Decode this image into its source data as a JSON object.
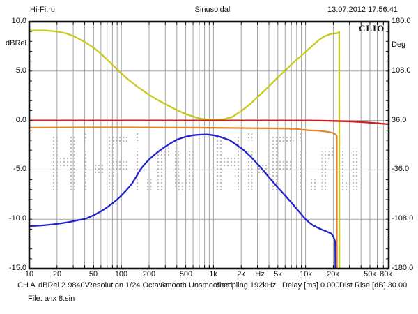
{
  "header": {
    "site": "Hi-Fi.ru",
    "title": "Sinusoidal",
    "datetime": "13.07.2012 17.56.41"
  },
  "brand": "CLIO",
  "watermark": "Hi-Fi.ru",
  "axes": {
    "left": {
      "unit": "dBRel",
      "ticks": [
        "10.0",
        "5.0",
        "0.0",
        "-5.0",
        "-10.0",
        "-15.0"
      ]
    },
    "right": {
      "unit": "Deg",
      "ticks": [
        "180.0",
        "108.0",
        "36.0",
        "-36.0",
        "-108.0",
        "-180.0"
      ]
    },
    "bottom": {
      "unit": "Hz",
      "ticks": [
        "10",
        "20",
        "50",
        "100",
        "200",
        "500",
        "1k",
        "2k",
        "5k",
        "10k",
        "20k",
        "50k",
        "80k"
      ]
    }
  },
  "status": {
    "channel": "CH A",
    "level": "dBRel 2.9840V",
    "resolution": "Resolution 1/24 Octave",
    "smoothing": "Smooth Unsmoothed",
    "sampling": "Sampling 192kHz",
    "delay": "Delay [ms] 0.000",
    "dist_rise": "Dist Rise [dB] 30.00",
    "file": "File: ачх 8.sin"
  },
  "chart_data": {
    "type": "line",
    "title": "Sinusoidal",
    "xlabel": "Hz",
    "ylabel_left": "dBRel",
    "ylabel_right": "Deg",
    "x_scale": "log",
    "xlim": [
      10,
      80000
    ],
    "ylim_left": [
      -15,
      10
    ],
    "ylim_right": [
      -180,
      180
    ],
    "grid": true,
    "grid_color": "#a6a6a6",
    "watermark_color": "#b4b4b4",
    "border_color": "#101010",
    "x_gridlines": [
      20,
      30,
      40,
      50,
      60,
      70,
      80,
      90,
      100,
      200,
      300,
      400,
      500,
      600,
      700,
      800,
      900,
      1000,
      2000,
      3000,
      4000,
      5000,
      6000,
      7000,
      8000,
      9000,
      10000,
      20000,
      30000,
      40000,
      50000,
      60000,
      70000,
      80000
    ],
    "y_gridlines": [
      5,
      0,
      -5,
      -10
    ],
    "series": [
      {
        "name": "yellow",
        "color": "#c9c91e",
        "points": [
          [
            10,
            9.1
          ],
          [
            15,
            9.1
          ],
          [
            20,
            9.0
          ],
          [
            25,
            8.82
          ],
          [
            30,
            8.55
          ],
          [
            40,
            7.95
          ],
          [
            50,
            7.35
          ],
          [
            60,
            6.75
          ],
          [
            70,
            6.15
          ],
          [
            80,
            5.65
          ],
          [
            90,
            5.15
          ],
          [
            100,
            4.75
          ],
          [
            120,
            4.1
          ],
          [
            150,
            3.4
          ],
          [
            200,
            2.6
          ],
          [
            250,
            2.05
          ],
          [
            300,
            1.65
          ],
          [
            400,
            1.05
          ],
          [
            500,
            0.65
          ],
          [
            600,
            0.4
          ],
          [
            700,
            0.22
          ],
          [
            850,
            0.1
          ],
          [
            1000,
            0.07
          ],
          [
            1300,
            0.12
          ],
          [
            1600,
            0.35
          ],
          [
            2000,
            0.95
          ],
          [
            2500,
            1.65
          ],
          [
            3000,
            2.35
          ],
          [
            4000,
            3.45
          ],
          [
            5000,
            4.35
          ],
          [
            6000,
            5.05
          ],
          [
            7000,
            5.65
          ],
          [
            8000,
            6.15
          ],
          [
            9000,
            6.55
          ],
          [
            10000,
            6.95
          ],
          [
            12000,
            7.6
          ],
          [
            14000,
            8.15
          ],
          [
            16000,
            8.5
          ],
          [
            18000,
            8.7
          ],
          [
            20000,
            8.8
          ],
          [
            22000,
            8.82
          ],
          [
            23200,
            8.95
          ],
          [
            23300,
            -15.5
          ]
        ]
      },
      {
        "name": "red",
        "color": "#d02020",
        "points": [
          [
            10,
            0
          ],
          [
            1000,
            0
          ],
          [
            10000,
            0
          ],
          [
            15000,
            -0.02
          ],
          [
            20000,
            -0.05
          ],
          [
            30000,
            -0.1
          ],
          [
            40000,
            -0.16
          ],
          [
            55000,
            -0.25
          ],
          [
            70000,
            -0.33
          ],
          [
            80000,
            -0.38
          ]
        ]
      },
      {
        "name": "orange",
        "color": "#e8862a",
        "points": [
          [
            10,
            -0.73
          ],
          [
            50,
            -0.7
          ],
          [
            100,
            -0.7
          ],
          [
            300,
            -0.72
          ],
          [
            500,
            -0.73
          ],
          [
            1000,
            -0.75
          ],
          [
            2000,
            -0.77
          ],
          [
            4000,
            -0.8
          ],
          [
            6000,
            -0.82
          ],
          [
            8000,
            -0.86
          ],
          [
            9000,
            -0.92
          ],
          [
            10000,
            -0.97
          ],
          [
            11000,
            -1.0
          ],
          [
            13000,
            -1.02
          ],
          [
            15000,
            -1.07
          ],
          [
            16500,
            -1.12
          ],
          [
            18000,
            -1.18
          ],
          [
            19500,
            -1.25
          ],
          [
            20500,
            -1.32
          ],
          [
            21300,
            -1.42
          ],
          [
            21800,
            -1.58
          ],
          [
            21900,
            -15.5
          ]
        ]
      },
      {
        "name": "blue",
        "color": "#2222cc",
        "points": [
          [
            10,
            -10.7
          ],
          [
            14,
            -10.62
          ],
          [
            18,
            -10.52
          ],
          [
            22,
            -10.42
          ],
          [
            27,
            -10.28
          ],
          [
            33,
            -10.12
          ],
          [
            41,
            -9.95
          ],
          [
            50,
            -9.6
          ],
          [
            60,
            -9.2
          ],
          [
            70,
            -8.8
          ],
          [
            80,
            -8.4
          ],
          [
            90,
            -8.0
          ],
          [
            100,
            -7.6
          ],
          [
            115,
            -7.0
          ],
          [
            130,
            -6.4
          ],
          [
            145,
            -5.7
          ],
          [
            160,
            -5.0
          ],
          [
            180,
            -4.4
          ],
          [
            200,
            -3.95
          ],
          [
            230,
            -3.45
          ],
          [
            260,
            -3.05
          ],
          [
            300,
            -2.65
          ],
          [
            350,
            -2.25
          ],
          [
            400,
            -1.95
          ],
          [
            450,
            -1.78
          ],
          [
            500,
            -1.65
          ],
          [
            600,
            -1.5
          ],
          [
            700,
            -1.44
          ],
          [
            850,
            -1.42
          ],
          [
            1000,
            -1.5
          ],
          [
            1200,
            -1.68
          ],
          [
            1500,
            -2.0
          ],
          [
            1800,
            -2.5
          ],
          [
            2100,
            -2.95
          ],
          [
            2500,
            -3.6
          ],
          [
            3000,
            -4.4
          ],
          [
            3500,
            -5.1
          ],
          [
            4000,
            -5.75
          ],
          [
            4500,
            -6.3
          ],
          [
            5000,
            -6.8
          ],
          [
            6000,
            -7.6
          ],
          [
            7000,
            -8.3
          ],
          [
            8000,
            -8.95
          ],
          [
            9000,
            -9.5
          ],
          [
            10000,
            -10.0
          ],
          [
            11000,
            -10.35
          ],
          [
            12000,
            -10.6
          ],
          [
            13500,
            -10.85
          ],
          [
            15000,
            -11.05
          ],
          [
            16500,
            -11.2
          ],
          [
            18000,
            -11.35
          ],
          [
            19000,
            -11.45
          ],
          [
            20000,
            -11.75
          ],
          [
            20700,
            -12.1
          ],
          [
            21000,
            -12.35
          ],
          [
            21100,
            -15.5
          ]
        ]
      }
    ]
  }
}
